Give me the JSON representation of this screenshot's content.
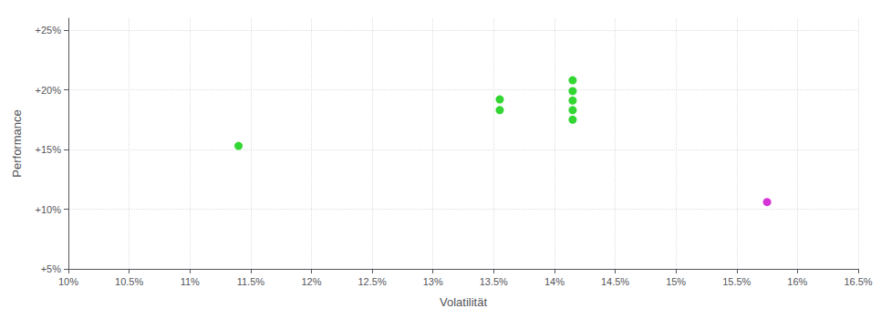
{
  "chart_data": {
    "type": "scatter",
    "xlabel": "Volatilität",
    "ylabel": "Performance",
    "xlim": [
      0.1,
      0.165
    ],
    "ylim": [
      0.05,
      0.26
    ],
    "xticks": [
      {
        "value": 0.1,
        "label": "10%"
      },
      {
        "value": 0.105,
        "label": "10.5%"
      },
      {
        "value": 0.11,
        "label": "11%"
      },
      {
        "value": 0.115,
        "label": "11.5%"
      },
      {
        "value": 0.12,
        "label": "12%"
      },
      {
        "value": 0.125,
        "label": "12.5%"
      },
      {
        "value": 0.13,
        "label": "13%"
      },
      {
        "value": 0.135,
        "label": "13.5%"
      },
      {
        "value": 0.14,
        "label": "14%"
      },
      {
        "value": 0.145,
        "label": "14.5%"
      },
      {
        "value": 0.15,
        "label": "15%"
      },
      {
        "value": 0.155,
        "label": "15.5%"
      },
      {
        "value": 0.16,
        "label": "16%"
      },
      {
        "value": 0.165,
        "label": "16.5%"
      }
    ],
    "yticks": [
      {
        "value": 0.05,
        "label": "+5%"
      },
      {
        "value": 0.1,
        "label": "+10%"
      },
      {
        "value": 0.15,
        "label": "+15%"
      },
      {
        "value": 0.2,
        "label": "+20%"
      },
      {
        "value": 0.25,
        "label": "+25%"
      }
    ],
    "grid": true,
    "series": [
      {
        "color": "#00cc00",
        "x": [
          0.1355,
          0.1355,
          0.114,
          0.1415,
          0.1415,
          0.1415,
          0.1415,
          0.1415
        ],
        "values": [
          0.192,
          0.183,
          0.153,
          0.208,
          0.199,
          0.191,
          0.183,
          0.175
        ]
      },
      {
        "color": "#cc00cc",
        "x": [
          0.1575
        ],
        "values": [
          0.106
        ]
      }
    ]
  }
}
